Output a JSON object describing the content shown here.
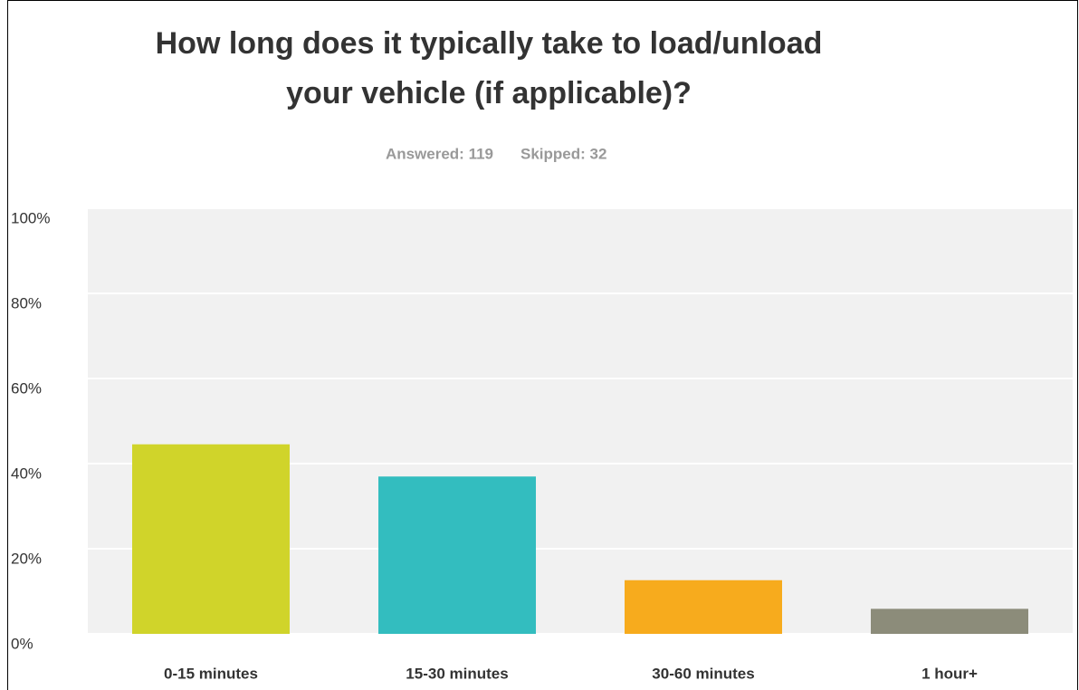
{
  "chart_data": {
    "type": "bar",
    "title": [
      "How long does it typically take to load/unload",
      "your vehicle (if applicable)?"
    ],
    "subtitle": [
      "Answered: 119",
      "Skipped: 32"
    ],
    "categories": [
      "0-15 minutes",
      "15-30 minutes",
      "30-60 minutes",
      "1 hour+"
    ],
    "values": [
      44.54,
      36.97,
      12.61,
      5.88
    ],
    "colors": [
      "#d0d42a",
      "#33bdbf",
      "#f7ab1d",
      "#8c8c7a"
    ],
    "ylim": [
      0,
      100
    ],
    "yticks": [
      {
        "value": 0,
        "label": "0%"
      },
      {
        "value": 20,
        "label": "20%"
      },
      {
        "value": 40,
        "label": "40%"
      },
      {
        "value": 60,
        "label": "60%"
      },
      {
        "value": 80,
        "label": "80%"
      },
      {
        "value": 100,
        "label": "100%"
      }
    ],
    "grid": true
  }
}
